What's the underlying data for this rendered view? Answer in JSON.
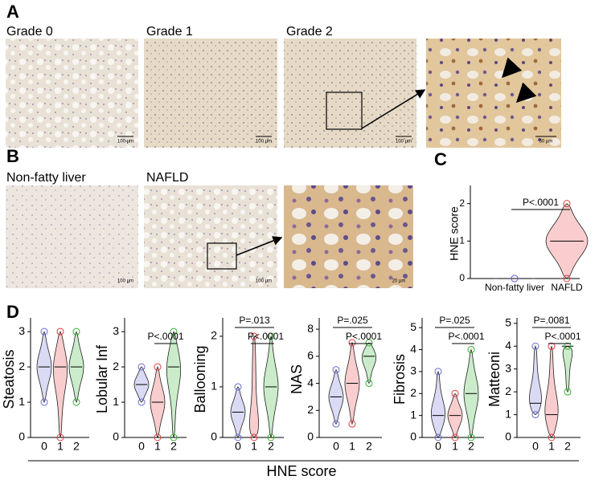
{
  "panel_labels": [
    "A",
    "B",
    "C",
    "D"
  ],
  "panel_a": {
    "images": [
      {
        "label": "Grade 0",
        "scale": "100 µm"
      },
      {
        "label": "Grade 1",
        "scale": "100 µm"
      },
      {
        "label": "Grade 2",
        "scale": "100 µm"
      },
      {
        "scale": "50 µm"
      }
    ]
  },
  "panel_b": {
    "images": [
      {
        "label": "Non-fatty liver",
        "scale": "100 µm"
      },
      {
        "label": "NAFLD",
        "scale": "100 µm"
      },
      {
        "scale": "20 µm"
      }
    ]
  },
  "panel_d_xlabel": "HNE score",
  "chart_data": [
    {
      "type": "violin",
      "ylabel": "HNE score",
      "categories": [
        "Non-fatty liver",
        "NAFLD"
      ],
      "colors": [
        "#6b6bd6",
        "#e8383d"
      ],
      "ranges": [
        [
          0,
          0
        ],
        [
          0,
          2
        ]
      ],
      "medians": [
        0,
        1
      ],
      "ylim": [
        0,
        2.4
      ],
      "yticks": [
        0,
        1,
        2
      ],
      "comparisons": [
        "P<.0001"
      ]
    },
    {
      "type": "violin",
      "ylabel": "Steatosis",
      "categories": [
        "0",
        "1",
        "2"
      ],
      "colors": [
        "#6b6bd6",
        "#e8383d",
        "#2db52d"
      ],
      "ranges": [
        [
          1,
          3
        ],
        [
          0,
          3
        ],
        [
          1,
          3
        ]
      ],
      "medians": [
        2,
        2,
        2
      ],
      "ylim": [
        0,
        3.3
      ],
      "yticks": [
        0,
        1,
        2,
        3
      ],
      "comparisons": []
    },
    {
      "type": "violin",
      "ylabel": "Lobular Inf",
      "categories": [
        "0",
        "1",
        "2"
      ],
      "colors": [
        "#6b6bd6",
        "#e8383d",
        "#2db52d"
      ],
      "ranges": [
        [
          1,
          2
        ],
        [
          0,
          2
        ],
        [
          0,
          3
        ]
      ],
      "medians": [
        1.5,
        1,
        2
      ],
      "ylim": [
        0,
        3.3
      ],
      "yticks": [
        0,
        1,
        2,
        3
      ],
      "comparisons": [
        "P<.0001"
      ]
    },
    {
      "type": "violin",
      "ylabel": "Ballooning",
      "categories": [
        "0",
        "1",
        "2"
      ],
      "colors": [
        "#6b6bd6",
        "#e8383d",
        "#2db52d"
      ],
      "ranges": [
        [
          0,
          1
        ],
        [
          0,
          2
        ],
        [
          0,
          2
        ]
      ],
      "medians": [
        0.5,
        0,
        1
      ],
      "ylim": [
        0,
        2.3
      ],
      "yticks": [
        0,
        1,
        2
      ],
      "comparisons": [
        "P=.013",
        "P<.0001"
      ]
    },
    {
      "type": "violin",
      "ylabel": "NAS",
      "categories": [
        "0",
        "1",
        "2"
      ],
      "colors": [
        "#6b6bd6",
        "#e8383d",
        "#2db52d"
      ],
      "ranges": [
        [
          1,
          5
        ],
        [
          1,
          7
        ],
        [
          4,
          7
        ]
      ],
      "medians": [
        3,
        4,
        6
      ],
      "ylim": [
        0,
        8.6
      ],
      "yticks": [
        0,
        2,
        4,
        6,
        8
      ],
      "comparisons": [
        "P=.025",
        "P<.0001"
      ]
    },
    {
      "type": "violin",
      "ylabel": "Fibrosis",
      "categories": [
        "0",
        "1",
        "2"
      ],
      "colors": [
        "#6b6bd6",
        "#e8383d",
        "#2db52d"
      ],
      "ranges": [
        [
          0,
          3
        ],
        [
          0,
          2
        ],
        [
          0,
          4
        ]
      ],
      "medians": [
        1,
        1,
        2
      ],
      "ylim": [
        0,
        5.3
      ],
      "yticks": [
        0,
        1,
        2,
        3,
        4,
        5
      ],
      "comparisons": [
        "P=.025",
        "P<.0001"
      ]
    },
    {
      "type": "violin",
      "ylabel": "Matteoni",
      "categories": [
        "0",
        "1",
        "2"
      ],
      "colors": [
        "#6b6bd6",
        "#e8383d",
        "#2db52d"
      ],
      "ranges": [
        [
          1,
          4
        ],
        [
          0,
          4
        ],
        [
          2,
          4
        ]
      ],
      "medians": [
        1.5,
        1,
        4
      ],
      "ylim": [
        0,
        5.1
      ],
      "yticks": [
        0,
        1,
        2,
        3,
        4,
        5
      ],
      "comparisons": [
        "P=.0081",
        "P<.0001"
      ]
    }
  ]
}
